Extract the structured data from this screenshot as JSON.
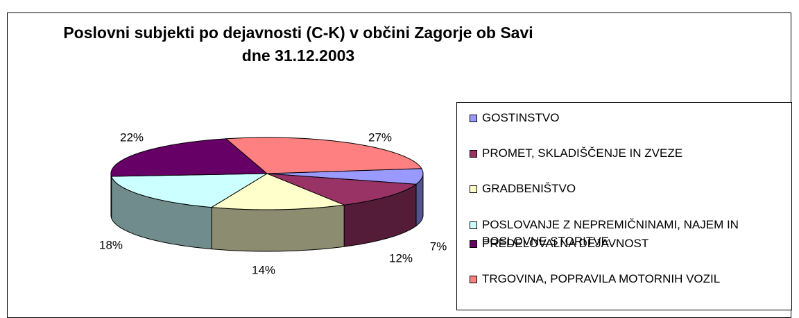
{
  "chart_data": {
    "type": "pie3d",
    "title": "Poslovni subjekti po dejavnosti (C-K) v občini Zagorje ob Savi",
    "subtitle": "dne 31.12.2003",
    "categories": [
      "GOSTINSTVO",
      "PROMET, SKLADIŠČENJE IN ZVEZE",
      "GRADBENIŠTVO",
      "POSLOVANJE Z NEPREMIČNINAMI, NAJEM IN POSLOVNE STORITVE",
      "PREDELOVALNA DEJAVNOST",
      "TRGOVINA, POPRAVILA MOTORNIH VOZIL"
    ],
    "values": [
      7,
      12,
      14,
      18,
      22,
      27
    ],
    "value_labels": [
      "7%",
      "12%",
      "14%",
      "18%",
      "22%",
      "27%"
    ],
    "colors": [
      "#9999ff",
      "#993366",
      "#ffffcc",
      "#ccffff",
      "#660066",
      "#ff8080"
    ],
    "legend": "right"
  }
}
